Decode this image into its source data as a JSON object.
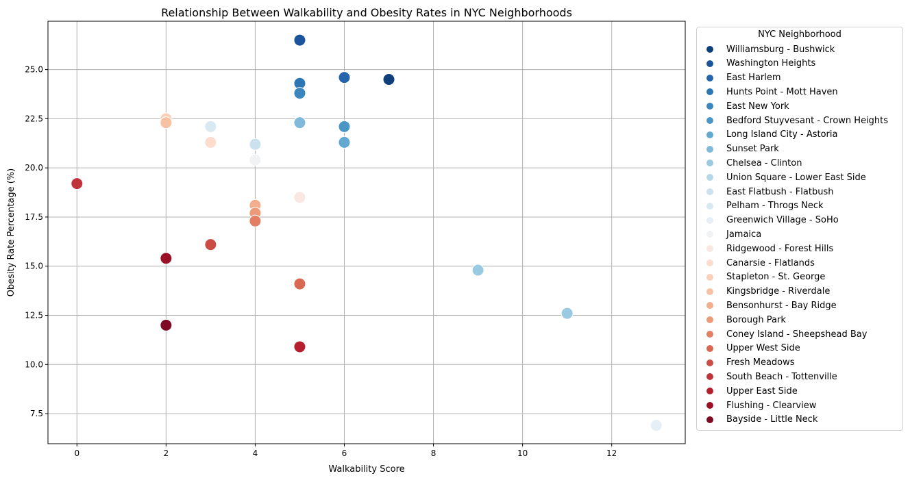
{
  "chart_data": {
    "type": "scatter",
    "title": "Relationship Between Walkability and Obesity Rates in NYC Neighborhoods",
    "xlabel": "Walkability Score",
    "ylabel": "Obesity Rate Percentage (%)",
    "xlim": [
      -0.65,
      13.65
    ],
    "ylim": [
      5.97,
      27.46
    ],
    "xticks": [
      0,
      2,
      4,
      6,
      8,
      10,
      12
    ],
    "xtick_labels": [
      "0",
      "2",
      "4",
      "6",
      "8",
      "10",
      "12"
    ],
    "yticks": [
      7.5,
      10.0,
      12.5,
      15.0,
      17.5,
      20.0,
      22.5,
      25.0
    ],
    "ytick_labels": [
      "7.5",
      "10.0",
      "12.5",
      "15.0",
      "17.5",
      "20.0",
      "22.5",
      "25.0"
    ],
    "grid": true,
    "legend_title": "NYC Neighborhood",
    "legend_placement": "outside right",
    "series": [
      {
        "name": "Williamsburg - Bushwick",
        "color": "#0f3f7b",
        "points": [
          {
            "x": 7,
            "y": 24.5
          }
        ]
      },
      {
        "name": "Washington Heights",
        "color": "#1b549b",
        "points": [
          {
            "x": 5,
            "y": 26.5
          }
        ]
      },
      {
        "name": "East Harlem",
        "color": "#2465ac",
        "points": [
          {
            "x": 6,
            "y": 24.6
          }
        ]
      },
      {
        "name": "Hunts Point - Mott Haven",
        "color": "#2d76b6",
        "points": [
          {
            "x": 5,
            "y": 24.3
          }
        ]
      },
      {
        "name": "East New York",
        "color": "#3a86bd",
        "points": [
          {
            "x": 5,
            "y": 23.8
          }
        ]
      },
      {
        "name": "Bedford Stuyvesant - Crown Heights",
        "color": "#4a97c6",
        "points": [
          {
            "x": 6,
            "y": 22.1
          }
        ]
      },
      {
        "name": "Long Island City - Astoria",
        "color": "#62a8d0",
        "points": [
          {
            "x": 6,
            "y": 21.3
          }
        ]
      },
      {
        "name": "Sunset Park",
        "color": "#80b9d9",
        "points": [
          {
            "x": 5,
            "y": 22.3
          }
        ]
      },
      {
        "name": "Chelsea - Clinton",
        "color": "#9acae1",
        "points": [
          {
            "x": 9,
            "y": 14.8
          },
          {
            "x": 11,
            "y": 12.6
          }
        ]
      },
      {
        "name": "Union Square - Lower East Side",
        "color": "#b4d8e8",
        "points": []
      },
      {
        "name": "East Flatbush - Flatbush",
        "color": "#c9e2ee",
        "points": [
          {
            "x": 4,
            "y": 21.2
          }
        ]
      },
      {
        "name": "Pelham - Throgs Neck",
        "color": "#d9e9f2",
        "points": [
          {
            "x": 3,
            "y": 22.1
          }
        ]
      },
      {
        "name": "Greenwich Village - SoHo",
        "color": "#e6eff5",
        "points": [
          {
            "x": 13,
            "y": 6.9
          }
        ]
      },
      {
        "name": "Jamaica",
        "color": "#f1f2f3",
        "points": [
          {
            "x": 4,
            "y": 20.4
          }
        ]
      },
      {
        "name": "Ridgewood - Forest Hills",
        "color": "#f8e8e1",
        "points": [
          {
            "x": 5,
            "y": 18.5
          }
        ]
      },
      {
        "name": "Canarsie - Flatlands",
        "color": "#fbdccd",
        "points": [
          {
            "x": 3,
            "y": 21.3
          }
        ]
      },
      {
        "name": "Stapleton - St. George",
        "color": "#fad0bb",
        "points": [
          {
            "x": 2,
            "y": 22.5
          }
        ]
      },
      {
        "name": "Kingsbridge - Riverdale",
        "color": "#f7c1a4",
        "points": [
          {
            "x": 2,
            "y": 22.3
          }
        ]
      },
      {
        "name": "Bensonhurst - Bay Ridge",
        "color": "#f4ad8d",
        "points": [
          {
            "x": 4,
            "y": 18.1
          }
        ]
      },
      {
        "name": "Borough Park",
        "color": "#ec9a77",
        "points": [
          {
            "x": 4,
            "y": 17.7
          }
        ]
      },
      {
        "name": "Coney Island - Sheepshead Bay",
        "color": "#e17e64",
        "points": [
          {
            "x": 4,
            "y": 17.3
          }
        ]
      },
      {
        "name": "Upper West Side",
        "color": "#d86852",
        "points": [
          {
            "x": 5,
            "y": 14.1
          }
        ]
      },
      {
        "name": "Fresh Meadows",
        "color": "#cc4c44",
        "points": [
          {
            "x": 3,
            "y": 16.1
          }
        ]
      },
      {
        "name": "South Beach - Tottenville",
        "color": "#c0333a",
        "points": [
          {
            "x": 0,
            "y": 19.2
          }
        ]
      },
      {
        "name": "Upper East Side",
        "color": "#b51f2e",
        "points": [
          {
            "x": 5,
            "y": 10.9
          }
        ]
      },
      {
        "name": "Flushing - Clearview",
        "color": "#9a1027",
        "points": [
          {
            "x": 2,
            "y": 15.4
          }
        ]
      },
      {
        "name": "Bayside - Little Neck",
        "color": "#7f0a24",
        "points": [
          {
            "x": 2,
            "y": 12.0
          }
        ]
      }
    ]
  }
}
